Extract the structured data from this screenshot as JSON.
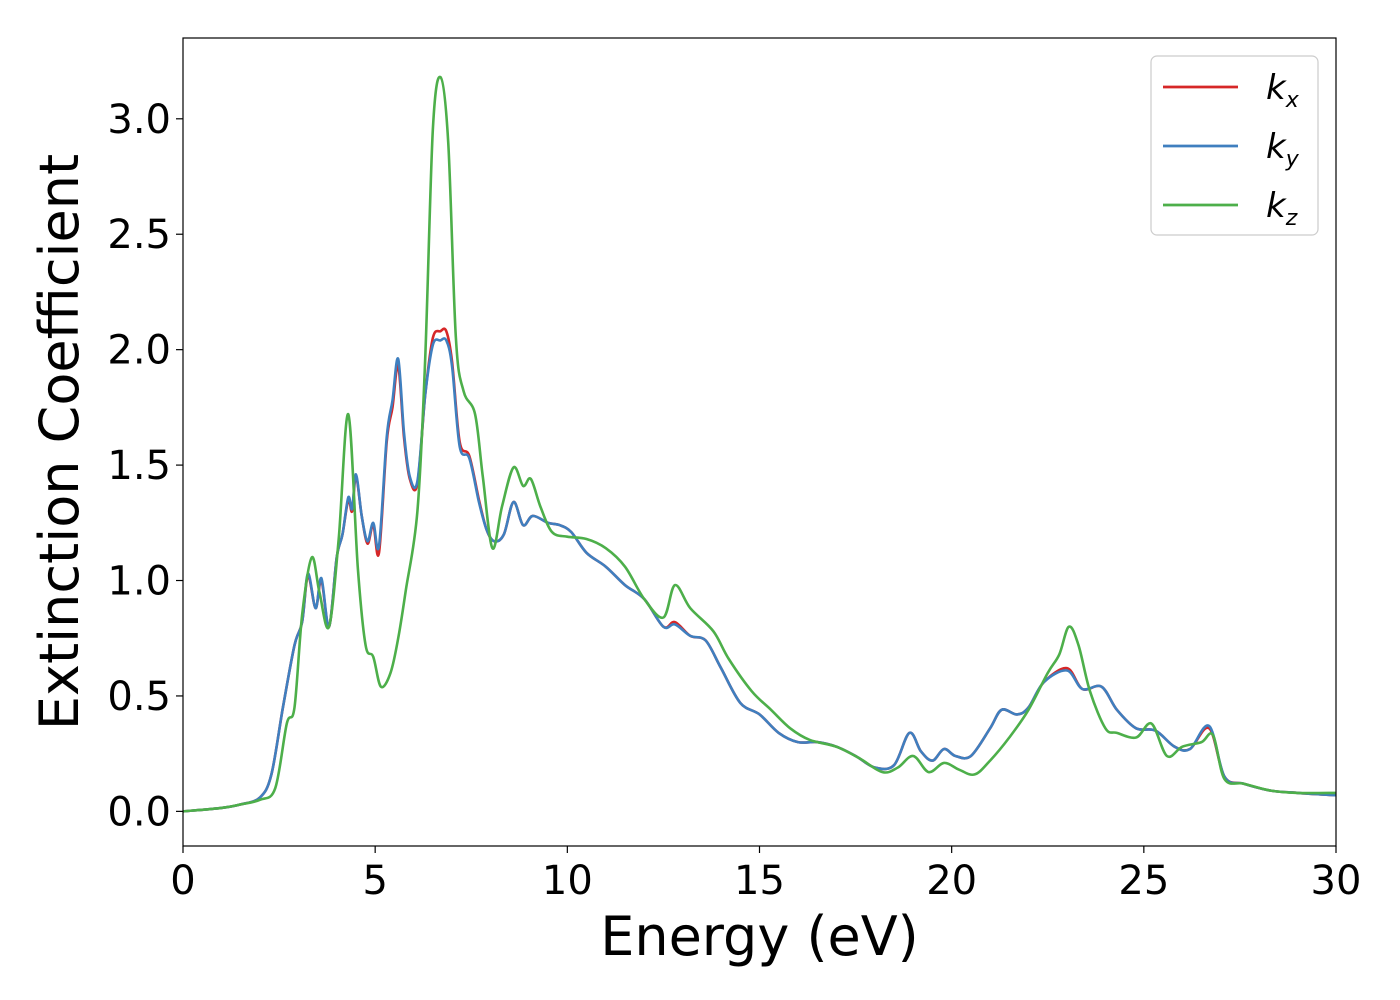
{
  "chart_data": {
    "type": "line",
    "title": "",
    "xlabel": "Energy (eV)",
    "ylabel": "Extinction Coefficient",
    "xlim": [
      0,
      30
    ],
    "ylim": [
      -0.15,
      3.35
    ],
    "xticks": [
      0,
      5,
      10,
      15,
      20,
      25,
      30
    ],
    "xtick_labels": [
      "0",
      "5",
      "10",
      "15",
      "20",
      "25",
      "30"
    ],
    "yticks": [
      0.0,
      0.5,
      1.0,
      1.5,
      2.0,
      2.5,
      3.0
    ],
    "ytick_labels": [
      "0.0",
      "0.5",
      "1.0",
      "1.5",
      "2.0",
      "2.5",
      "3.0"
    ],
    "grid": false,
    "legend_position": "top-right",
    "series": [
      {
        "name": "k_x",
        "label_base": "k",
        "label_sub": "x",
        "color": "#d62728",
        "x": [
          0,
          1,
          1.5,
          2,
          2.3,
          2.6,
          2.9,
          3.1,
          3.25,
          3.45,
          3.6,
          3.8,
          4.0,
          4.15,
          4.3,
          4.4,
          4.5,
          4.65,
          4.8,
          4.95,
          5.1,
          5.3,
          5.45,
          5.6,
          5.75,
          5.9,
          6.1,
          6.3,
          6.5,
          6.7,
          6.85,
          7.0,
          7.2,
          7.45,
          7.7,
          7.9,
          8.1,
          8.35,
          8.6,
          8.85,
          9.1,
          9.5,
          9.8,
          10.1,
          10.5,
          11,
          11.5,
          12,
          12.5,
          12.8,
          13.2,
          13.6,
          14,
          14.5,
          15,
          15.5,
          16,
          16.5,
          17,
          17.5,
          18,
          18.5,
          18.9,
          19.2,
          19.5,
          19.8,
          20.1,
          20.5,
          21,
          21.3,
          21.7,
          22,
          22.4,
          23,
          23.4,
          23.9,
          24.3,
          24.8,
          25.3,
          25.8,
          26.2,
          26.7,
          27.1,
          27.6,
          28.3,
          29,
          30
        ],
        "y": [
          0.0,
          0.015,
          0.03,
          0.06,
          0.16,
          0.45,
          0.72,
          0.82,
          1.02,
          0.88,
          1.0,
          0.8,
          1.1,
          1.2,
          1.35,
          1.3,
          1.45,
          1.28,
          1.16,
          1.24,
          1.12,
          1.6,
          1.75,
          1.93,
          1.62,
          1.44,
          1.42,
          1.8,
          2.05,
          2.08,
          2.08,
          1.95,
          1.6,
          1.54,
          1.35,
          1.22,
          1.17,
          1.2,
          1.34,
          1.24,
          1.28,
          1.25,
          1.24,
          1.21,
          1.12,
          1.06,
          0.98,
          0.92,
          0.8,
          0.82,
          0.76,
          0.74,
          0.62,
          0.47,
          0.42,
          0.34,
          0.3,
          0.3,
          0.28,
          0.24,
          0.19,
          0.2,
          0.34,
          0.26,
          0.22,
          0.27,
          0.24,
          0.24,
          0.36,
          0.44,
          0.42,
          0.45,
          0.56,
          0.62,
          0.53,
          0.54,
          0.44,
          0.36,
          0.35,
          0.28,
          0.27,
          0.36,
          0.15,
          0.12,
          0.09,
          0.08,
          0.07
        ]
      },
      {
        "name": "k_y",
        "label_base": "k",
        "label_sub": "y",
        "color": "#3f7fbf",
        "x": [
          0,
          1,
          1.5,
          2,
          2.3,
          2.6,
          2.9,
          3.1,
          3.25,
          3.45,
          3.6,
          3.8,
          4.0,
          4.15,
          4.3,
          4.4,
          4.5,
          4.65,
          4.8,
          4.95,
          5.1,
          5.3,
          5.45,
          5.6,
          5.75,
          5.9,
          6.1,
          6.3,
          6.5,
          6.7,
          6.85,
          7.0,
          7.2,
          7.45,
          7.7,
          7.9,
          8.1,
          8.35,
          8.6,
          8.85,
          9.1,
          9.5,
          9.8,
          10.1,
          10.5,
          11,
          11.5,
          12,
          12.5,
          12.8,
          13.2,
          13.6,
          14,
          14.5,
          15,
          15.5,
          16,
          16.5,
          17,
          17.5,
          18,
          18.5,
          18.9,
          19.2,
          19.5,
          19.8,
          20.1,
          20.5,
          21,
          21.3,
          21.7,
          22,
          22.4,
          23,
          23.4,
          23.9,
          24.3,
          24.8,
          25.3,
          25.8,
          26.2,
          26.7,
          27.1,
          27.6,
          28.3,
          29,
          30
        ],
        "y": [
          0.0,
          0.015,
          0.03,
          0.06,
          0.16,
          0.45,
          0.72,
          0.82,
          1.03,
          0.88,
          1.01,
          0.8,
          1.1,
          1.2,
          1.36,
          1.31,
          1.46,
          1.28,
          1.17,
          1.25,
          1.15,
          1.62,
          1.78,
          1.96,
          1.64,
          1.45,
          1.43,
          1.8,
          2.02,
          2.04,
          2.04,
          1.93,
          1.58,
          1.53,
          1.34,
          1.22,
          1.17,
          1.2,
          1.34,
          1.24,
          1.28,
          1.25,
          1.24,
          1.21,
          1.12,
          1.06,
          0.98,
          0.92,
          0.8,
          0.81,
          0.76,
          0.74,
          0.62,
          0.47,
          0.42,
          0.34,
          0.3,
          0.3,
          0.28,
          0.24,
          0.19,
          0.2,
          0.34,
          0.26,
          0.22,
          0.27,
          0.24,
          0.24,
          0.36,
          0.44,
          0.42,
          0.45,
          0.56,
          0.61,
          0.53,
          0.54,
          0.44,
          0.36,
          0.35,
          0.28,
          0.27,
          0.37,
          0.15,
          0.12,
          0.09,
          0.08,
          0.07
        ]
      },
      {
        "name": "k_z",
        "label_base": "k",
        "label_sub": "z",
        "color": "#4daf4a",
        "x": [
          0,
          1,
          1.5,
          2,
          2.4,
          2.7,
          2.9,
          3.1,
          3.35,
          3.55,
          3.8,
          4.05,
          4.3,
          4.55,
          4.75,
          4.95,
          5.15,
          5.4,
          5.6,
          5.8,
          6.1,
          6.3,
          6.5,
          6.7,
          6.9,
          7.1,
          7.3,
          7.6,
          7.8,
          8.05,
          8.3,
          8.6,
          8.85,
          9.05,
          9.3,
          9.6,
          10,
          10.5,
          11,
          11.5,
          12,
          12.5,
          12.8,
          13.2,
          13.8,
          14.2,
          14.8,
          15.3,
          15.8,
          16.3,
          17,
          17.6,
          18.2,
          18.6,
          19,
          19.4,
          19.8,
          20.2,
          20.6,
          21,
          21.5,
          22,
          22.5,
          22.8,
          23.05,
          23.3,
          23.6,
          24,
          24.3,
          24.8,
          25.2,
          25.6,
          26,
          26.5,
          26.8,
          27.1,
          27.6,
          28.3,
          29,
          30
        ],
        "y": [
          0.0,
          0.015,
          0.03,
          0.05,
          0.1,
          0.38,
          0.45,
          0.85,
          1.1,
          0.95,
          0.8,
          1.18,
          1.72,
          1.05,
          0.72,
          0.67,
          0.54,
          0.6,
          0.75,
          0.96,
          1.3,
          1.95,
          2.95,
          3.18,
          2.9,
          2.05,
          1.82,
          1.72,
          1.45,
          1.14,
          1.32,
          1.49,
          1.41,
          1.44,
          1.32,
          1.21,
          1.19,
          1.18,
          1.14,
          1.06,
          0.92,
          0.84,
          0.98,
          0.88,
          0.78,
          0.66,
          0.52,
          0.44,
          0.36,
          0.31,
          0.28,
          0.23,
          0.17,
          0.19,
          0.24,
          0.17,
          0.21,
          0.18,
          0.16,
          0.22,
          0.32,
          0.44,
          0.6,
          0.68,
          0.8,
          0.72,
          0.52,
          0.36,
          0.34,
          0.32,
          0.38,
          0.24,
          0.28,
          0.3,
          0.33,
          0.14,
          0.12,
          0.09,
          0.08,
          0.08
        ]
      }
    ]
  }
}
